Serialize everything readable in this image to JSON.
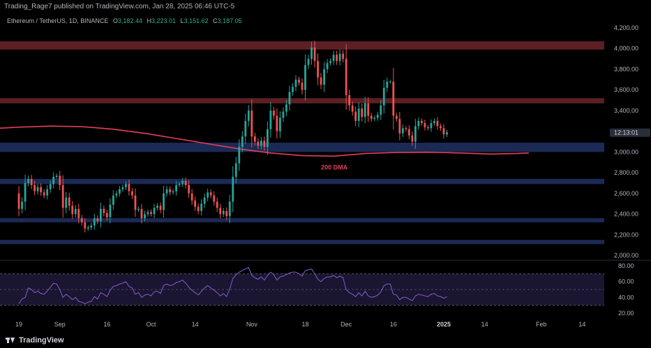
{
  "header": {
    "caption": "Trading_Rage7 published on TradingView.com, Jan 28, 2025 06:46 UTC-5"
  },
  "legend": {
    "symbol": "Ethereum / TetherUS, 1D, BINANCE",
    "o_label": "O",
    "o_value": "3,182.44",
    "h_label": "H",
    "h_value": "3,223.01",
    "l_label": "L",
    "l_value": "3,151.62",
    "c_label": "C",
    "c_value": "3,187.05"
  },
  "footer": {
    "brand": "TradingView"
  },
  "colors": {
    "up": "#26a69a",
    "down": "#ef5350",
    "resistance_zone": "#5c1f24",
    "support_zone": "#1b2a55",
    "ma_line": "#e63d5c",
    "rsi_line": "#7e57c2",
    "rsi_band": "#1a1530",
    "price_tag": "#2a2e39"
  },
  "chart_data": [
    {
      "type": "candlestick",
      "ylim": [
        2000,
        4200
      ],
      "yticks": [
        "4,200.00",
        "4,000.00",
        "3,800.00",
        "3,600.00",
        "3,400.00",
        "3,200.00",
        "3,000.00",
        "2,800.00",
        "2,600.00",
        "2,400.00",
        "2,200.00",
        "2,000.00"
      ],
      "ytick_values": [
        4200,
        4000,
        3800,
        3600,
        3400,
        3200,
        3000,
        2800,
        2600,
        2400,
        2200,
        2000
      ],
      "xticks": [
        {
          "label": "19",
          "day": 0
        },
        {
          "label": "Sep",
          "day": 13
        },
        {
          "label": "16",
          "day": 28
        },
        {
          "label": "Oct",
          "day": 42
        },
        {
          "label": "14",
          "day": 56
        },
        {
          "label": "Nov",
          "day": 74
        },
        {
          "label": "18",
          "day": 91
        },
        {
          "label": "Dec",
          "day": 104
        },
        {
          "label": "16",
          "day": 119
        },
        {
          "label": "2025",
          "day": 135
        },
        {
          "label": "14",
          "day": 148
        },
        {
          "label": "Feb",
          "day": 166
        },
        {
          "label": "14",
          "day": 179
        }
      ],
      "xlim": [
        -6,
        186
      ],
      "zones": [
        {
          "kind": "resistance",
          "from": 3990,
          "to": 4070
        },
        {
          "kind": "resistance",
          "from": 3470,
          "to": 3520
        },
        {
          "kind": "support",
          "from": 3000,
          "to": 3090
        },
        {
          "kind": "support",
          "from": 2690,
          "to": 2740
        },
        {
          "kind": "support",
          "from": 2320,
          "to": 2360
        },
        {
          "kind": "support",
          "from": 2110,
          "to": 2150
        }
      ],
      "ma_label": "200 DMA",
      "ma_label_at": {
        "day": 96,
        "price": 2830
      },
      "ma": [
        {
          "day": -6,
          "price": 3230
        },
        {
          "day": 0,
          "price": 3240
        },
        {
          "day": 10,
          "price": 3250
        },
        {
          "day": 20,
          "price": 3245
        },
        {
          "day": 30,
          "price": 3220
        },
        {
          "day": 40,
          "price": 3180
        },
        {
          "day": 50,
          "price": 3130
        },
        {
          "day": 60,
          "price": 3080
        },
        {
          "day": 70,
          "price": 3030
        },
        {
          "day": 80,
          "price": 2990
        },
        {
          "day": 90,
          "price": 2965
        },
        {
          "day": 100,
          "price": 2960
        },
        {
          "day": 110,
          "price": 2985
        },
        {
          "day": 120,
          "price": 2995
        },
        {
          "day": 130,
          "price": 2998
        },
        {
          "day": 140,
          "price": 2990
        },
        {
          "day": 150,
          "price": 2980
        },
        {
          "day": 158,
          "price": 2985
        },
        {
          "day": 162,
          "price": 2990
        }
      ],
      "closes": [
        2450,
        2520,
        2700,
        2740,
        2680,
        2620,
        2660,
        2610,
        2580,
        2640,
        2690,
        2760,
        2770,
        2680,
        2460,
        2560,
        2480,
        2400,
        2450,
        2360,
        2320,
        2260,
        2270,
        2290,
        2360,
        2330,
        2450,
        2410,
        2370,
        2490,
        2580,
        2600,
        2640,
        2660,
        2690,
        2620,
        2580,
        2440,
        2450,
        2360,
        2400,
        2420,
        2400,
        2460,
        2480,
        2440,
        2600,
        2640,
        2610,
        2620,
        2680,
        2690,
        2720,
        2680,
        2600,
        2530,
        2470,
        2430,
        2500,
        2560,
        2610,
        2580,
        2520,
        2460,
        2400,
        2430,
        2380,
        2520,
        2760,
        2890,
        3050,
        3150,
        3300,
        3400,
        3150,
        3100,
        3060,
        3110,
        3050,
        3220,
        3400,
        3350,
        3200,
        3330,
        3390,
        3460,
        3580,
        3630,
        3700,
        3670,
        3600,
        3840,
        3900,
        4010,
        3880,
        3720,
        3650,
        3800,
        3860,
        3880,
        3940,
        3880,
        3950,
        3900,
        3550,
        3450,
        3390,
        3300,
        3420,
        3340,
        3470,
        3350,
        3320,
        3330,
        3360,
        3450,
        3620,
        3680,
        3680,
        3350,
        3320,
        3180,
        3230,
        3220,
        3160,
        3100,
        3250,
        3300,
        3280,
        3240,
        3230,
        3280,
        3300,
        3250,
        3230,
        3170,
        3190
      ],
      "first_open": 2600,
      "price_tag": "12:13:01",
      "price_tag_value": 3187
    },
    {
      "type": "line",
      "name": "",
      "ylim": [
        20,
        80
      ],
      "yticks": [
        "80.00",
        "60.00",
        "40.00",
        "20.00"
      ],
      "ytick_values": [
        80,
        60,
        40,
        20
      ],
      "band": [
        30,
        70
      ],
      "midline": 50,
      "values": [
        32,
        38,
        40,
        52,
        50,
        46,
        48,
        45,
        44,
        48,
        53,
        58,
        57,
        50,
        40,
        44,
        41,
        37,
        40,
        35,
        34,
        32,
        34,
        35,
        41,
        38,
        46,
        44,
        41,
        49,
        54,
        55,
        57,
        58,
        60,
        54,
        52,
        44,
        46,
        40,
        43,
        44,
        42,
        47,
        48,
        45,
        55,
        57,
        55,
        56,
        59,
        60,
        62,
        58,
        53,
        49,
        46,
        43,
        48,
        52,
        55,
        52,
        49,
        46,
        42,
        45,
        41,
        51,
        64,
        69,
        72,
        74,
        76,
        78,
        68,
        65,
        63,
        66,
        62,
        68,
        72,
        69,
        62,
        66,
        67,
        69,
        71,
        72,
        72,
        70,
        67,
        74,
        75,
        76,
        70,
        63,
        60,
        64,
        66,
        66,
        68,
        65,
        67,
        65,
        50,
        46,
        44,
        41,
        46,
        42,
        48,
        42,
        40,
        41,
        43,
        47,
        55,
        57,
        57,
        44,
        43,
        37,
        40,
        40,
        38,
        36,
        42,
        44,
        43,
        42,
        41,
        44,
        45,
        42,
        41,
        39,
        41
      ]
    }
  ]
}
